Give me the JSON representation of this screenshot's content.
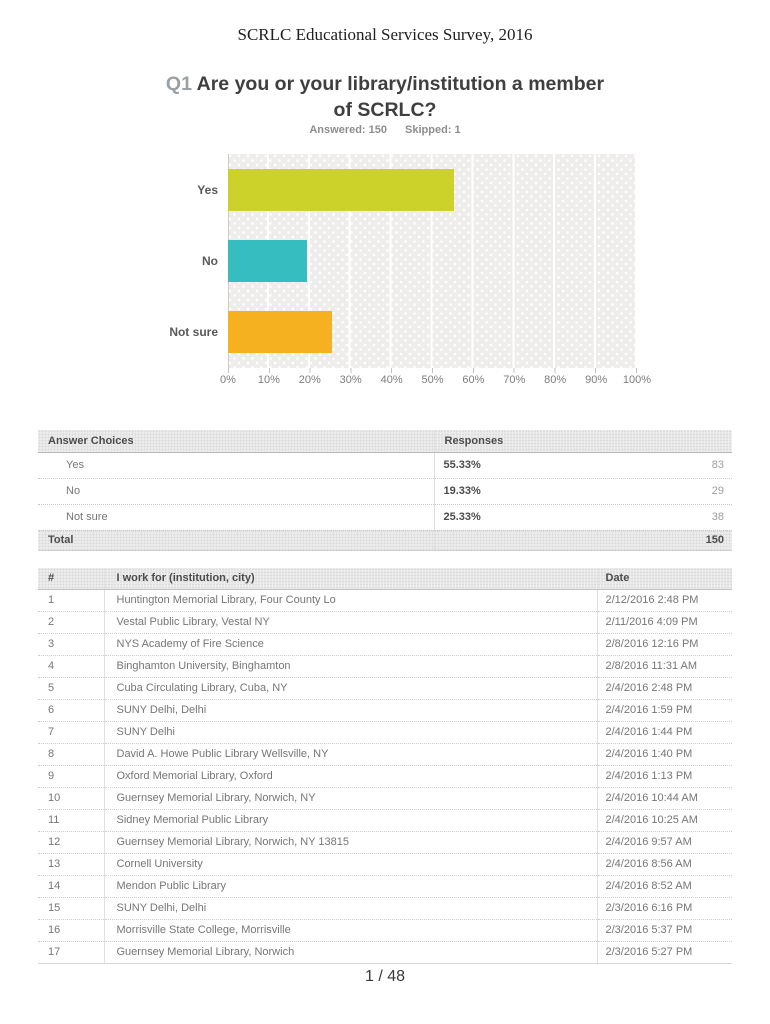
{
  "page": {
    "doc_title": "SCRLC Educational Services Survey, 2016",
    "page_number": "1 / 48"
  },
  "question": {
    "prefix": "Q1",
    "title": "Are you or your library/institution a member of SCRLC?",
    "answered_label": "Answered: 150",
    "skipped_label": "Skipped: 1"
  },
  "chart_data": {
    "type": "bar",
    "orientation": "horizontal",
    "title": "Q1 Are you or your library/institution a member of SCRLC?",
    "categories": [
      "Yes",
      "No",
      "Not sure"
    ],
    "values": [
      55.33,
      19.33,
      25.33
    ],
    "colors": [
      "#cdd22b",
      "#35bdbf",
      "#f5b120"
    ],
    "x_ticks": [
      "0%",
      "10%",
      "20%",
      "30%",
      "40%",
      "50%",
      "60%",
      "70%",
      "80%",
      "90%",
      "100%"
    ],
    "xlim": [
      0,
      100
    ],
    "grid": true,
    "legend": "none",
    "plot_background": "#eeedec"
  },
  "answer_table": {
    "headers": [
      "Answer Choices",
      "Responses"
    ],
    "rows": [
      {
        "choice": "Yes",
        "percent": "55.33%",
        "count": "83"
      },
      {
        "choice": "No",
        "percent": "19.33%",
        "count": "29"
      },
      {
        "choice": "Not sure",
        "percent": "25.33%",
        "count": "38"
      }
    ],
    "total_label": "Total",
    "total_value": "150"
  },
  "responses_table": {
    "headers": [
      "#",
      "I work for (institution, city)",
      "Date"
    ],
    "rows": [
      [
        "1",
        "Huntington Memorial Library, Four County Lo",
        "2/12/2016 2:48 PM"
      ],
      [
        "2",
        "Vestal Public Library, Vestal NY",
        "2/11/2016 4:09 PM"
      ],
      [
        "3",
        "NYS Academy of Fire Science",
        "2/8/2016 12:16 PM"
      ],
      [
        "4",
        "Binghamton University, Binghamton",
        "2/8/2016 11:31 AM"
      ],
      [
        "5",
        "Cuba Circulating Library, Cuba, NY",
        "2/4/2016 2:48 PM"
      ],
      [
        "6",
        "SUNY Delhi, Delhi",
        "2/4/2016 1:59 PM"
      ],
      [
        "7",
        "SUNY Delhi",
        "2/4/2016 1:44 PM"
      ],
      [
        "8",
        "David A. Howe Public Library Wellsville, NY",
        "2/4/2016 1:40 PM"
      ],
      [
        "9",
        "Oxford Memorial Library, Oxford",
        "2/4/2016 1:13 PM"
      ],
      [
        "10",
        "Guernsey Memorial Library, Norwich, NY",
        "2/4/2016 10:44 AM"
      ],
      [
        "11",
        "Sidney Memorial Public Library",
        "2/4/2016 10:25 AM"
      ],
      [
        "12",
        "Guernsey Memorial Library, Norwich, NY 13815",
        "2/4/2016 9:57 AM"
      ],
      [
        "13",
        "Cornell University",
        "2/4/2016 8:56 AM"
      ],
      [
        "14",
        "Mendon Public Library",
        "2/4/2016 8:52 AM"
      ],
      [
        "15",
        "SUNY Delhi, Delhi",
        "2/3/2016 6:16 PM"
      ],
      [
        "16",
        "Morrisville State College, Morrisville",
        "2/3/2016 5:37 PM"
      ],
      [
        "17",
        "Guernsey Memorial Library, Norwich",
        "2/3/2016 5:27 PM"
      ]
    ]
  }
}
